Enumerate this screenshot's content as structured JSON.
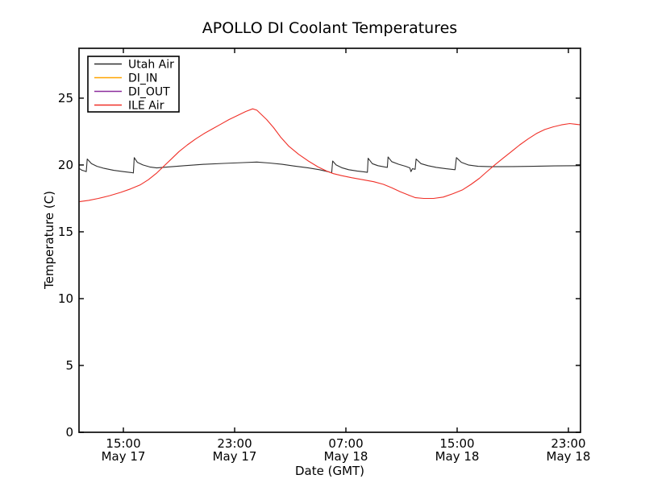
{
  "figure": {
    "background": "#ffffff",
    "frame_color": "#1a1a1a"
  },
  "chart_data": {
    "type": "line",
    "title": "APOLLO DI Coolant Temperatures",
    "xlabel": "Date (GMT)",
    "ylabel": "Temperature (C)",
    "grid": false,
    "legend": {
      "position": "upper-left"
    },
    "x_axis": {
      "unit": "hours since May 17 00:00 GMT",
      "min": 11.81,
      "max": 47.87,
      "ticks": [
        {
          "value": 15,
          "time": "15:00",
          "date": "May 17"
        },
        {
          "value": 23,
          "time": "23:00",
          "date": "May 17"
        },
        {
          "value": 31,
          "time": "07:00",
          "date": "May 18"
        },
        {
          "value": 39,
          "time": "15:00",
          "date": "May 18"
        },
        {
          "value": 47,
          "time": "23:00",
          "date": "May 18"
        }
      ]
    },
    "y_axis": {
      "min": 0,
      "max": 28.73,
      "ticks": [
        0,
        5,
        10,
        15,
        20,
        25
      ]
    },
    "series": [
      {
        "name": "Utah Air",
        "color": "#2f2f2f",
        "points": [
          [
            11.81,
            19.75
          ],
          [
            12.0,
            19.62
          ],
          [
            12.2,
            19.55
          ],
          [
            12.33,
            19.5
          ],
          [
            12.4,
            20.45
          ],
          [
            12.7,
            20.1
          ],
          [
            13.1,
            19.9
          ],
          [
            13.6,
            19.75
          ],
          [
            14.3,
            19.6
          ],
          [
            15.0,
            19.5
          ],
          [
            15.6,
            19.43
          ],
          [
            15.72,
            19.4
          ],
          [
            15.78,
            20.55
          ],
          [
            16.0,
            20.2
          ],
          [
            16.4,
            20.0
          ],
          [
            16.9,
            19.85
          ],
          [
            17.4,
            19.78
          ],
          [
            18.2,
            19.85
          ],
          [
            19.4,
            19.95
          ],
          [
            20.8,
            20.05
          ],
          [
            22.2,
            20.12
          ],
          [
            23.6,
            20.18
          ],
          [
            24.6,
            20.22
          ],
          [
            25.5,
            20.15
          ],
          [
            26.4,
            20.05
          ],
          [
            27.3,
            19.92
          ],
          [
            28.2,
            19.8
          ],
          [
            29.1,
            19.65
          ],
          [
            29.7,
            19.5
          ],
          [
            29.98,
            19.42
          ],
          [
            30.05,
            20.3
          ],
          [
            30.3,
            20.0
          ],
          [
            30.7,
            19.8
          ],
          [
            31.2,
            19.65
          ],
          [
            31.8,
            19.55
          ],
          [
            32.4,
            19.47
          ],
          [
            32.55,
            19.45
          ],
          [
            32.6,
            20.5
          ],
          [
            32.9,
            20.1
          ],
          [
            33.3,
            19.95
          ],
          [
            33.8,
            19.85
          ],
          [
            33.98,
            19.82
          ],
          [
            34.03,
            20.6
          ],
          [
            34.3,
            20.25
          ],
          [
            34.8,
            20.05
          ],
          [
            35.3,
            19.9
          ],
          [
            35.6,
            19.78
          ],
          [
            35.68,
            19.5
          ],
          [
            35.78,
            19.72
          ],
          [
            35.98,
            19.68
          ],
          [
            36.05,
            20.45
          ],
          [
            36.4,
            20.1
          ],
          [
            36.9,
            19.95
          ],
          [
            37.5,
            19.82
          ],
          [
            38.2,
            19.72
          ],
          [
            38.85,
            19.65
          ],
          [
            38.95,
            20.55
          ],
          [
            39.3,
            20.2
          ],
          [
            39.8,
            20.0
          ],
          [
            40.5,
            19.9
          ],
          [
            41.5,
            19.87
          ],
          [
            43.0,
            19.88
          ],
          [
            44.5,
            19.9
          ],
          [
            46.0,
            19.93
          ],
          [
            47.87,
            19.95
          ]
        ]
      },
      {
        "name": "DI_IN",
        "color": "#ffa500",
        "points": [
          [
            11.81,
            0.0
          ],
          [
            47.87,
            0.0
          ]
        ]
      },
      {
        "name": "DI_OUT",
        "color": "#8c2d9c",
        "points": [
          [
            11.81,
            0.0
          ],
          [
            47.87,
            0.0
          ]
        ]
      },
      {
        "name": "ILE Air",
        "color": "#f03028",
        "points": [
          [
            11.81,
            17.25
          ],
          [
            12.5,
            17.35
          ],
          [
            13.2,
            17.5
          ],
          [
            14.0,
            17.7
          ],
          [
            14.8,
            17.95
          ],
          [
            15.5,
            18.2
          ],
          [
            16.2,
            18.5
          ],
          [
            16.8,
            18.9
          ],
          [
            17.4,
            19.4
          ],
          [
            17.9,
            19.9
          ],
          [
            18.4,
            20.4
          ],
          [
            19.0,
            21.0
          ],
          [
            19.6,
            21.5
          ],
          [
            20.2,
            21.95
          ],
          [
            20.8,
            22.35
          ],
          [
            21.4,
            22.7
          ],
          [
            22.0,
            23.05
          ],
          [
            22.6,
            23.4
          ],
          [
            23.2,
            23.7
          ],
          [
            23.8,
            24.0
          ],
          [
            24.3,
            24.2
          ],
          [
            24.6,
            24.1
          ],
          [
            24.9,
            23.8
          ],
          [
            25.3,
            23.4
          ],
          [
            25.8,
            22.8
          ],
          [
            26.3,
            22.1
          ],
          [
            26.9,
            21.4
          ],
          [
            27.6,
            20.8
          ],
          [
            28.3,
            20.3
          ],
          [
            29.0,
            19.85
          ],
          [
            29.6,
            19.55
          ],
          [
            30.1,
            19.35
          ],
          [
            30.7,
            19.2
          ],
          [
            31.4,
            19.05
          ],
          [
            32.2,
            18.9
          ],
          [
            33.0,
            18.75
          ],
          [
            33.7,
            18.55
          ],
          [
            34.3,
            18.3
          ],
          [
            34.9,
            18.0
          ],
          [
            35.5,
            17.75
          ],
          [
            36.0,
            17.55
          ],
          [
            36.6,
            17.5
          ],
          [
            37.3,
            17.5
          ],
          [
            38.0,
            17.6
          ],
          [
            38.7,
            17.85
          ],
          [
            39.4,
            18.15
          ],
          [
            40.0,
            18.55
          ],
          [
            40.6,
            19.0
          ],
          [
            41.2,
            19.55
          ],
          [
            41.7,
            20.0
          ],
          [
            42.3,
            20.5
          ],
          [
            42.9,
            21.0
          ],
          [
            43.5,
            21.5
          ],
          [
            44.1,
            21.95
          ],
          [
            44.7,
            22.35
          ],
          [
            45.3,
            22.65
          ],
          [
            45.9,
            22.85
          ],
          [
            46.5,
            23.0
          ],
          [
            47.1,
            23.1
          ],
          [
            47.5,
            23.05
          ],
          [
            47.87,
            23.0
          ]
        ]
      }
    ]
  }
}
